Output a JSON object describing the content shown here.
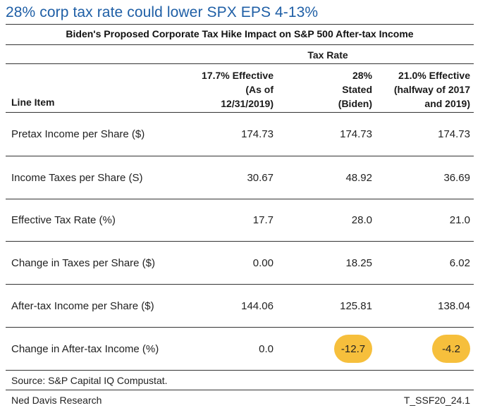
{
  "headline": "28% corp tax rate could lower SPX EPS 4-13%",
  "subtitle": "Biden's Proposed Corporate Tax Hike Impact on  S&P 500 After-tax Income",
  "group_header": "Tax Rate",
  "columns": {
    "line_item": "Line Item",
    "col1": [
      "17.7% Effective",
      "(As of",
      "12/31/2019)"
    ],
    "col2": [
      "28%",
      "Stated",
      "(Biden)"
    ],
    "col3": [
      "21.0% Effective",
      "(halfway of  2017",
      "and 2019)"
    ]
  },
  "rows": [
    {
      "label": "Pretax Income per Share ($)",
      "v1": "174.73",
      "v2": "174.73",
      "v3": "174.73"
    },
    {
      "label": "Income Taxes per Share (S)",
      "v1": "30.67",
      "v2": "48.92",
      "v3": "36.69"
    },
    {
      "label": "Effective Tax Rate (%)",
      "v1": "17.7",
      "v2": "28.0",
      "v3": "21.0"
    },
    {
      "label": "Change in Taxes per Share ($)",
      "v1": "0.00",
      "v2": "18.25",
      "v3": "6.02"
    },
    {
      "label": "After-tax Income per Share ($)",
      "v1": "144.06",
      "v2": "125.81",
      "v3": "138.04"
    },
    {
      "label": "Change in After-tax Income (%)",
      "v1": "0.0",
      "v2": "-12.7",
      "v3": "-4.2"
    }
  ],
  "highlight_color": "#f6bf3c",
  "headline_color": "#1f5fa6",
  "source": "Source: S&P Capital IQ Compustat.",
  "footer": {
    "left": "Ned Davis Research",
    "right": "T_SSF20_24.1"
  }
}
